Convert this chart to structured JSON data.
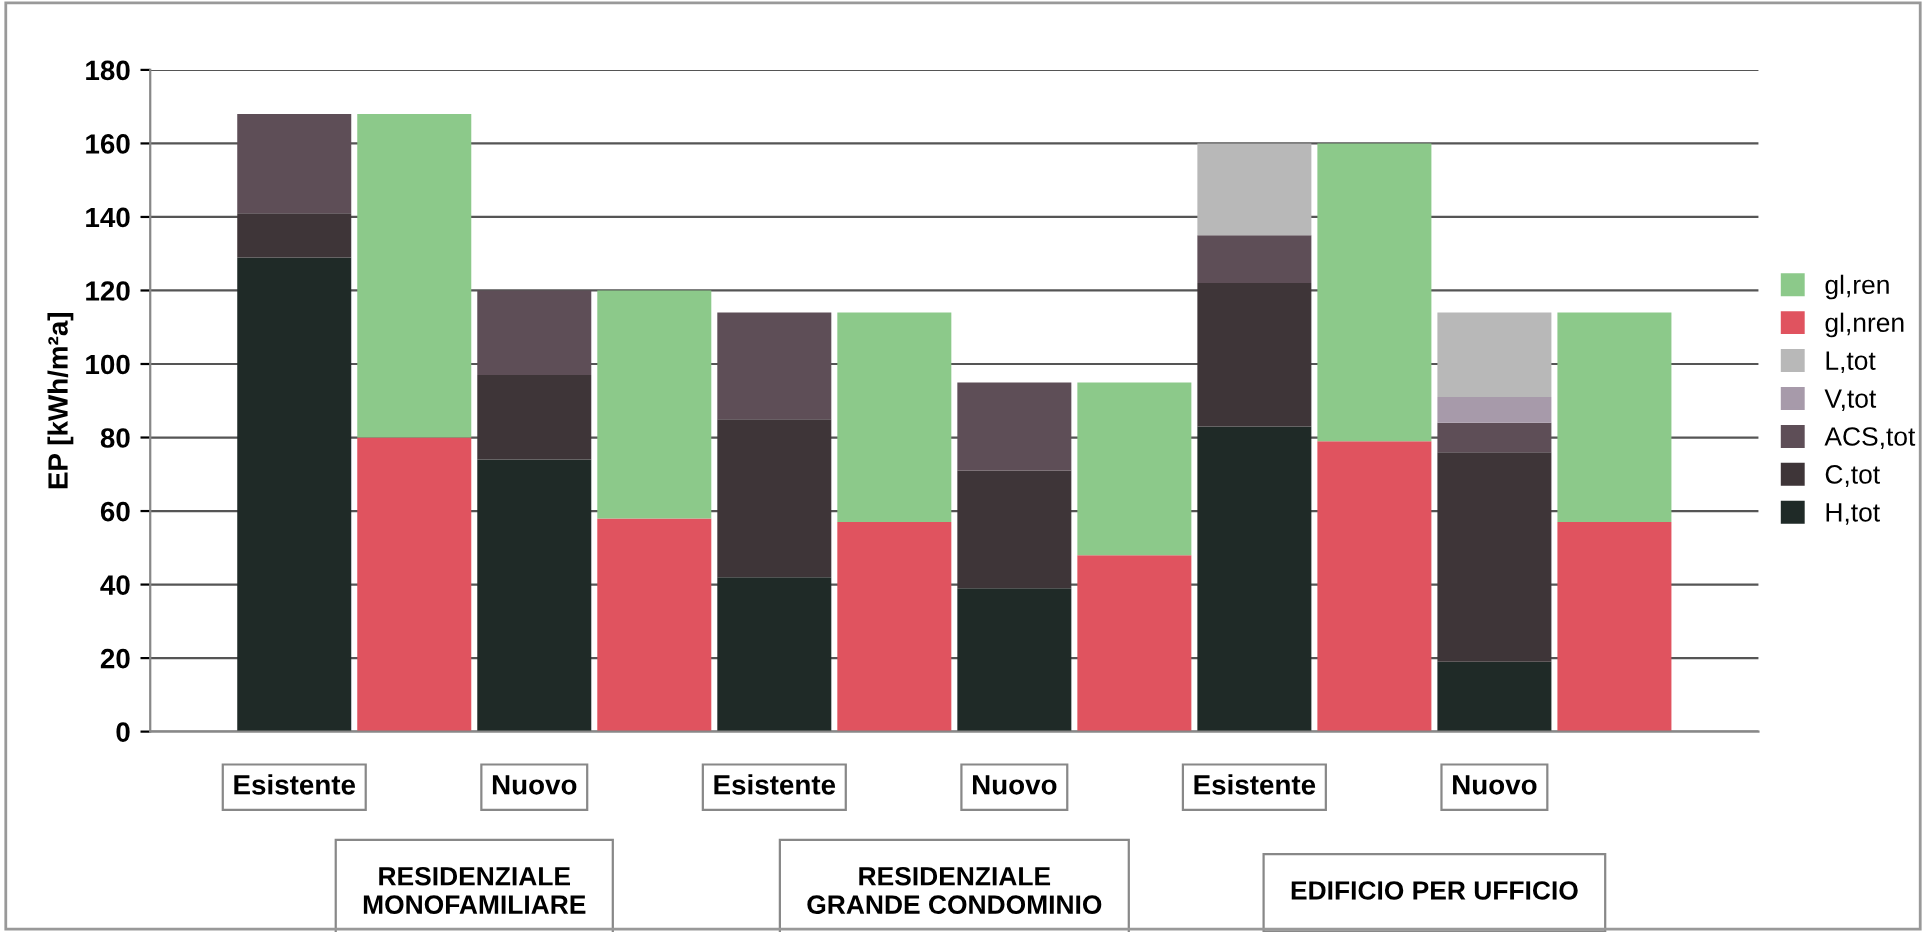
{
  "chart_data": {
    "type": "bar",
    "stacked": true,
    "ylabel": "EP [kWh/m²a]",
    "categories": [
      "Esistente",
      null,
      "Nuovo",
      null,
      "Esistente",
      null,
      "Nuovo",
      null,
      "Esistente",
      null,
      "Nuovo",
      null
    ],
    "series": [
      {
        "name": "H,tot",
        "color": "#1f2a27",
        "values": [
          129,
          null,
          74,
          null,
          42,
          null,
          39,
          null,
          83,
          null,
          19,
          null
        ]
      },
      {
        "name": "C,tot",
        "color": "#3e3538",
        "values": [
          12,
          null,
          23,
          null,
          43,
          null,
          32,
          null,
          39,
          null,
          57,
          null
        ]
      },
      {
        "name": "ACS,tot",
        "color": "#5e4e57",
        "values": [
          27,
          null,
          23,
          null,
          29,
          null,
          24,
          null,
          13,
          null,
          8,
          null
        ]
      },
      {
        "name": "V,tot",
        "color": "#a79aaa",
        "values": [
          null,
          null,
          null,
          null,
          null,
          null,
          null,
          null,
          null,
          null,
          7,
          null
        ]
      },
      {
        "name": "L,tot",
        "color": "#b8b8b8",
        "values": [
          null,
          null,
          null,
          null,
          null,
          null,
          null,
          null,
          25,
          null,
          23,
          null
        ]
      },
      {
        "name": "gl,nren",
        "color": "#e0535f",
        "values": [
          null,
          80,
          null,
          58,
          null,
          57,
          null,
          48,
          null,
          79,
          null,
          57
        ]
      },
      {
        "name": "gl,ren",
        "color": "#8cc98a",
        "values": [
          null,
          88,
          null,
          62,
          null,
          57,
          null,
          47,
          null,
          81,
          null,
          57
        ]
      }
    ],
    "ylim": [
      0,
      180
    ],
    "yticks": [
      0,
      20,
      40,
      60,
      80,
      100,
      120,
      140,
      160,
      180
    ],
    "grid": "y",
    "legend": "right",
    "annotations": [
      "RESIDENZIALE\nMONOFAMILIARE",
      "RESIDENZIALE\nGRANDE CONDOMINIO",
      "EDIFICIO PER UFFICIO"
    ]
  }
}
